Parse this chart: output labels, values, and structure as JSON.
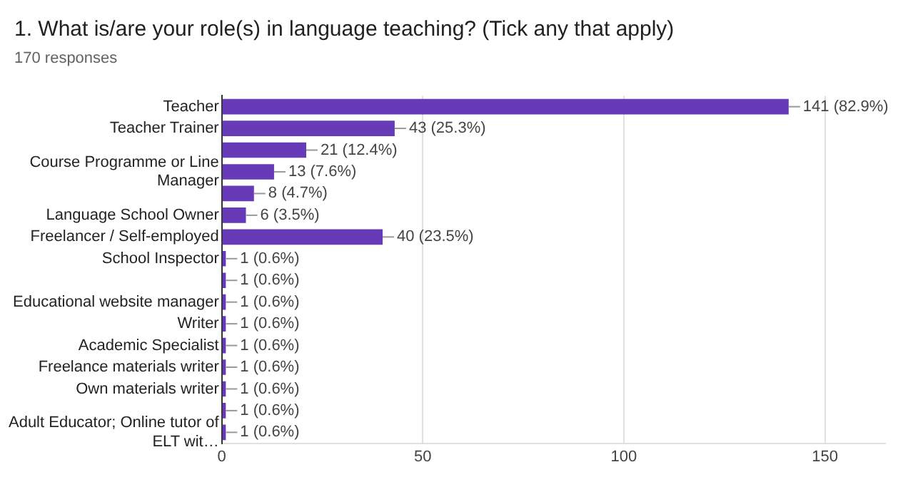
{
  "chart_data": {
    "type": "bar",
    "orientation": "horizontal",
    "title": "1. What is/are your role(s) in language teaching? (Tick any that apply)",
    "subtitle": "170 responses",
    "categories": [
      "Teacher",
      "Teacher Trainer",
      null,
      "Course Programme or Line Manager",
      null,
      "Language School Owner",
      "Freelancer / Self-employed",
      "School Inspector",
      null,
      "Educational website manager",
      "Writer",
      "Academic Specialist",
      "Freelance materials writer",
      "Own materials writer",
      null,
      "Adult Educator; Online tutor of ELT wit…"
    ],
    "values": [
      141,
      43,
      21,
      13,
      8,
      6,
      40,
      1,
      1,
      1,
      1,
      1,
      1,
      1,
      1,
      1
    ],
    "value_labels": [
      "141 (82.9%)",
      "43 (25.3%)",
      "21 (12.4%)",
      "13 (7.6%)",
      "8 (4.7%)",
      "6 (3.5%)",
      "40 (23.5%)",
      "1 (0.6%)",
      "1 (0.6%)",
      "1 (0.6%)",
      "1 (0.6%)",
      "1 (0.6%)",
      "1 (0.6%)",
      "1 (0.6%)",
      "1 (0.6%)",
      "1 (0.6%)"
    ],
    "color": "#673ab7",
    "xlim": [
      0,
      165
    ],
    "xticks": [
      0,
      50,
      100,
      150
    ],
    "grid": "x",
    "legend": false
  }
}
